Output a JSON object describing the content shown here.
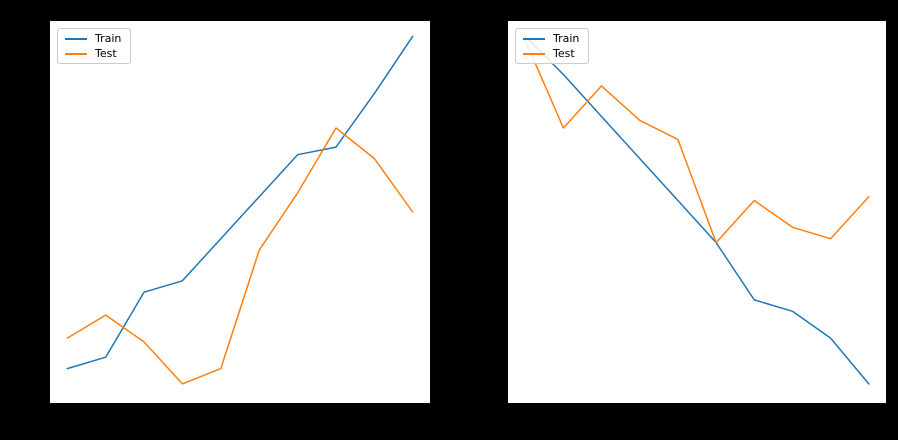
{
  "figure": {
    "background": "#000000",
    "axes_background": "#ffffff"
  },
  "colors": {
    "train": "#1f77b4",
    "test": "#ff7f0e"
  },
  "legend": {
    "position": "upper left",
    "items": [
      {
        "label": "Train",
        "color": "#1f77b4"
      },
      {
        "label": "Test",
        "color": "#ff7f0e"
      }
    ]
  },
  "chart_data": [
    {
      "type": "line",
      "x": [
        1,
        2,
        3,
        4,
        5,
        6,
        7,
        8,
        9,
        10
      ],
      "xlim": [
        0.55,
        10.45
      ],
      "ylim": [
        0,
        1
      ],
      "grid": false,
      "tick_labels_visible": false,
      "legend_position": "upper left",
      "series": [
        {
          "name": "Train",
          "color": "#1f77b4",
          "values": [
            0.09,
            0.12,
            0.29,
            0.32,
            0.43,
            0.54,
            0.65,
            0.67,
            0.81,
            0.96
          ]
        },
        {
          "name": "Test",
          "color": "#ff7f0e",
          "values": [
            0.17,
            0.23,
            0.16,
            0.05,
            0.09,
            0.4,
            0.55,
            0.72,
            0.64,
            0.5
          ]
        }
      ]
    },
    {
      "type": "line",
      "x": [
        1,
        2,
        3,
        4,
        5,
        6,
        7,
        8,
        9,
        10
      ],
      "xlim": [
        0.55,
        10.45
      ],
      "ylim": [
        0,
        1
      ],
      "grid": false,
      "tick_labels_visible": false,
      "legend_position": "upper left",
      "series": [
        {
          "name": "Train",
          "color": "#1f77b4",
          "values": [
            0.96,
            0.86,
            0.75,
            0.64,
            0.53,
            0.42,
            0.27,
            0.24,
            0.17,
            0.05
          ]
        },
        {
          "name": "Test",
          "color": "#ff7f0e",
          "values": [
            0.95,
            0.72,
            0.83,
            0.74,
            0.69,
            0.42,
            0.53,
            0.46,
            0.43,
            0.54
          ]
        }
      ]
    }
  ]
}
